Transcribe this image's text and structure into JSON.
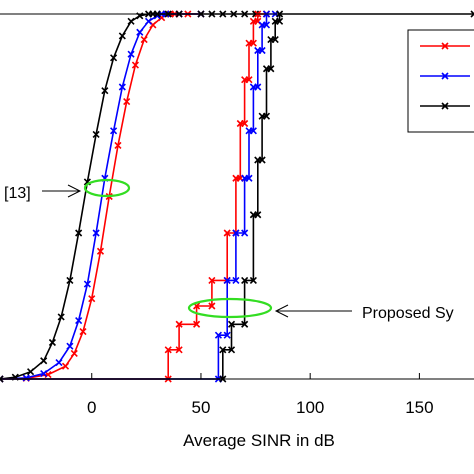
{
  "chart_data": {
    "type": "line",
    "xlabel": "Average SINR in dB",
    "ylabel": "",
    "xlim": [
      -42,
      175
    ],
    "ylim": [
      0,
      1
    ],
    "xticks": [
      0,
      50,
      100,
      150
    ],
    "grid": false,
    "legend_position": "top-right",
    "series": [
      {
        "color": "#ff0000",
        "marker": "x",
        "x": [
          -42,
          -30,
          -20,
          -12,
          -8,
          -4,
          0,
          4,
          8,
          12,
          16,
          20,
          24,
          28,
          32,
          34,
          36,
          38,
          40,
          44,
          50
        ],
        "y": [
          0,
          0.002,
          0.012,
          0.035,
          0.07,
          0.13,
          0.22,
          0.35,
          0.5,
          0.64,
          0.76,
          0.86,
          0.93,
          0.97,
          0.99,
          1,
          1,
          1,
          1,
          1,
          1
        ]
      },
      {
        "color": "#0000ff",
        "marker": "x",
        "x": [
          -42,
          -30,
          -22,
          -15,
          -10,
          -6,
          -2,
          2,
          6,
          10,
          14,
          18,
          22,
          26,
          30,
          32,
          34,
          40,
          50
        ],
        "y": [
          0,
          0.003,
          0.015,
          0.045,
          0.09,
          0.16,
          0.26,
          0.4,
          0.55,
          0.68,
          0.8,
          0.89,
          0.95,
          0.98,
          0.995,
          1,
          1,
          1,
          1
        ]
      },
      {
        "color": "#000000",
        "marker": "x",
        "x": [
          -42,
          -35,
          -28,
          -22,
          -18,
          -14,
          -10,
          -6,
          -2,
          2,
          6,
          10,
          14,
          18,
          22,
          26,
          28,
          30,
          35,
          40,
          50,
          55,
          60,
          65,
          70,
          75,
          80
        ],
        "y": [
          0,
          0.005,
          0.02,
          0.05,
          0.1,
          0.17,
          0.27,
          0.4,
          0.54,
          0.67,
          0.79,
          0.88,
          0.94,
          0.98,
          0.995,
          1,
          1,
          1,
          1,
          1,
          1,
          1,
          1,
          1,
          1,
          1,
          1
        ]
      },
      {
        "color": "#ff0000",
        "marker": "x",
        "x": [
          -42,
          35,
          35,
          40,
          40,
          48,
          48,
          55,
          55,
          62,
          62,
          66,
          66,
          68,
          68,
          70,
          70,
          72,
          72,
          74,
          74,
          76,
          76,
          80
        ],
        "y": [
          0,
          0,
          0.08,
          0.08,
          0.15,
          0.15,
          0.2,
          0.2,
          0.27,
          0.27,
          0.4,
          0.4,
          0.55,
          0.55,
          0.7,
          0.7,
          0.82,
          0.82,
          0.92,
          0.92,
          0.98,
          0.98,
          1,
          1
        ]
      },
      {
        "color": "#0000ff",
        "marker": "x",
        "x": [
          -42,
          58,
          58,
          62,
          62,
          66,
          66,
          70,
          70,
          72,
          72,
          74,
          74,
          76,
          76,
          78,
          78,
          80,
          80,
          84
        ],
        "y": [
          0,
          0,
          0.12,
          0.12,
          0.27,
          0.27,
          0.4,
          0.4,
          0.55,
          0.55,
          0.68,
          0.68,
          0.8,
          0.8,
          0.9,
          0.9,
          0.97,
          0.97,
          1,
          1
        ]
      },
      {
        "color": "#000000",
        "marker": "x",
        "x": [
          -42,
          60,
          60,
          64,
          64,
          70,
          70,
          74,
          74,
          76,
          76,
          78,
          78,
          80,
          80,
          82,
          82,
          84,
          84,
          86,
          86,
          175
        ],
        "y": [
          0,
          0,
          0.08,
          0.08,
          0.15,
          0.15,
          0.27,
          0.27,
          0.45,
          0.45,
          0.6,
          0.6,
          0.72,
          0.72,
          0.85,
          0.85,
          0.93,
          0.93,
          0.98,
          0.98,
          1,
          1
        ]
      }
    ],
    "annotations": [
      {
        "text": "[13]"
      },
      {
        "text": "Proposed Sy"
      }
    ]
  }
}
